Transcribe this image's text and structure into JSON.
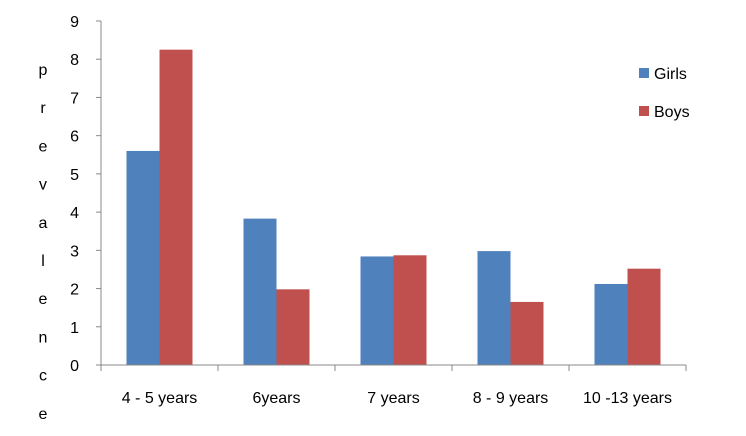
{
  "chart_data": {
    "type": "bar",
    "title": "",
    "xlabel": "",
    "ylabel": "prevalence",
    "categories": [
      "4 - 5 years",
      "6years",
      "7 years",
      "8 - 9 years",
      "10 -13 years"
    ],
    "series": [
      {
        "name": "Girls",
        "color": "#4F81BD",
        "values": [
          5.6,
          3.83,
          2.84,
          2.98,
          2.12
        ]
      },
      {
        "name": "Boys",
        "color": "#C0504D",
        "values": [
          8.25,
          1.98,
          2.87,
          1.65,
          2.52
        ]
      }
    ],
    "ylim": [
      0,
      9
    ],
    "yticks": [
      "0",
      "1",
      "2",
      "3",
      "4",
      "5",
      "6",
      "7",
      "8",
      "9"
    ],
    "grid": false,
    "legend_position": "right"
  }
}
